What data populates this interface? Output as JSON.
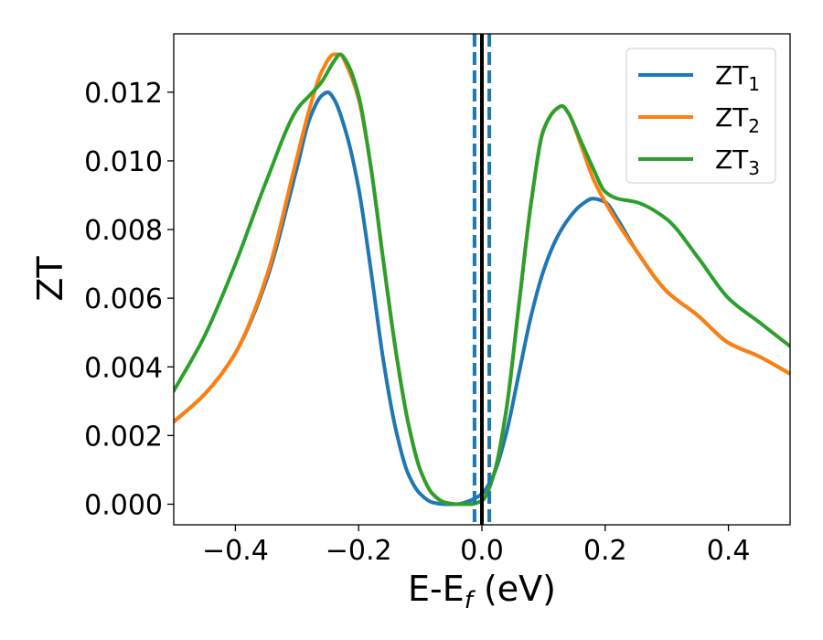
{
  "chart_data": {
    "type": "line",
    "xlabel_main": "E-E",
    "xlabel_sub": "f",
    "xlabel_unit": " (eV)",
    "ylabel": "ZT",
    "xlim": [
      -0.5,
      0.5
    ],
    "ylim": [
      -0.0006,
      0.0137
    ],
    "x_ticks": [
      -0.4,
      -0.2,
      0.0,
      0.2,
      0.4
    ],
    "x_tick_labels": [
      "−0.4",
      "−0.2",
      "0.0",
      "0.2",
      "0.4"
    ],
    "y_ticks": [
      0.0,
      0.002,
      0.004,
      0.006,
      0.008,
      0.01,
      0.012
    ],
    "y_tick_labels": [
      "0.000",
      "0.002",
      "0.004",
      "0.006",
      "0.008",
      "0.010",
      "0.012"
    ],
    "grid": false,
    "legend_position": "top-right",
    "vertical_lines": [
      {
        "x": 0.0,
        "style": "solid",
        "color": "#000000"
      },
      {
        "x": -0.012,
        "style": "dashed",
        "color": "#1f77b4"
      },
      {
        "x": 0.012,
        "style": "dashed",
        "color": "#1f77b4"
      }
    ],
    "series": [
      {
        "name": "ZT",
        "subscript": "1",
        "color": "#1f77b4",
        "x": [
          -0.5,
          -0.45,
          -0.4,
          -0.35,
          -0.3,
          -0.28,
          -0.26,
          -0.25,
          -0.24,
          -0.22,
          -0.2,
          -0.18,
          -0.16,
          -0.14,
          -0.12,
          -0.1,
          -0.08,
          -0.06,
          -0.04,
          -0.02,
          0.0,
          0.02,
          0.04,
          0.06,
          0.08,
          0.1,
          0.12,
          0.14,
          0.16,
          0.18,
          0.2,
          0.22,
          0.25,
          0.3,
          0.35,
          0.4,
          0.45,
          0.5
        ],
        "y": [
          0.0024,
          0.0032,
          0.0044,
          0.0065,
          0.0098,
          0.0112,
          0.0119,
          0.012,
          0.0118,
          0.0108,
          0.0092,
          0.0068,
          0.0042,
          0.0022,
          0.0009,
          0.0003,
          5e-05,
          0.0,
          0.0,
          0.0001,
          0.0003,
          0.0009,
          0.0021,
          0.0038,
          0.0055,
          0.0068,
          0.0077,
          0.0083,
          0.0087,
          0.0089,
          0.0088,
          0.0083,
          0.0074,
          0.0062,
          0.0055,
          0.0047,
          0.0043,
          0.0038
        ]
      },
      {
        "name": "ZT",
        "subscript": "2",
        "color": "#ff7f0e",
        "x": [
          -0.5,
          -0.45,
          -0.4,
          -0.35,
          -0.3,
          -0.28,
          -0.26,
          -0.24,
          -0.23,
          -0.22,
          -0.2,
          -0.18,
          -0.16,
          -0.14,
          -0.12,
          -0.1,
          -0.08,
          -0.06,
          -0.04,
          -0.02,
          0.0,
          0.02,
          0.04,
          0.06,
          0.08,
          0.1,
          0.12,
          0.13,
          0.14,
          0.16,
          0.18,
          0.2,
          0.22,
          0.25,
          0.3,
          0.35,
          0.4,
          0.45,
          0.5
        ],
        "y": [
          0.0024,
          0.0032,
          0.0044,
          0.0066,
          0.0101,
          0.0115,
          0.0126,
          0.0131,
          0.0131,
          0.0128,
          0.0118,
          0.0098,
          0.0071,
          0.0045,
          0.0024,
          0.001,
          0.0003,
          5e-05,
          0.0,
          0.0,
          0.0001,
          0.0009,
          0.0028,
          0.0058,
          0.0088,
          0.0109,
          0.0115,
          0.0116,
          0.0114,
          0.0105,
          0.0095,
          0.0088,
          0.0082,
          0.0074,
          0.0062,
          0.0055,
          0.0047,
          0.0043,
          0.0038
        ]
      },
      {
        "name": "ZT",
        "subscript": "3",
        "color": "#2ca02c",
        "x": [
          -0.5,
          -0.45,
          -0.4,
          -0.35,
          -0.3,
          -0.28,
          -0.26,
          -0.24,
          -0.23,
          -0.22,
          -0.2,
          -0.18,
          -0.16,
          -0.14,
          -0.12,
          -0.1,
          -0.08,
          -0.06,
          -0.04,
          -0.02,
          0.0,
          0.02,
          0.04,
          0.06,
          0.08,
          0.1,
          0.12,
          0.13,
          0.14,
          0.16,
          0.18,
          0.2,
          0.22,
          0.25,
          0.3,
          0.35,
          0.4,
          0.45,
          0.5
        ],
        "y": [
          0.0033,
          0.0049,
          0.007,
          0.0094,
          0.0115,
          0.0119,
          0.0123,
          0.0129,
          0.0131,
          0.0129,
          0.0119,
          0.0098,
          0.0071,
          0.0045,
          0.0024,
          0.001,
          0.0003,
          5e-05,
          0.0,
          0.0,
          0.0001,
          0.0009,
          0.0028,
          0.0058,
          0.0088,
          0.0109,
          0.0115,
          0.0116,
          0.0114,
          0.0106,
          0.0098,
          0.0091,
          0.0089,
          0.0088,
          0.0083,
          0.0072,
          0.006,
          0.0053,
          0.0046
        ]
      }
    ]
  }
}
